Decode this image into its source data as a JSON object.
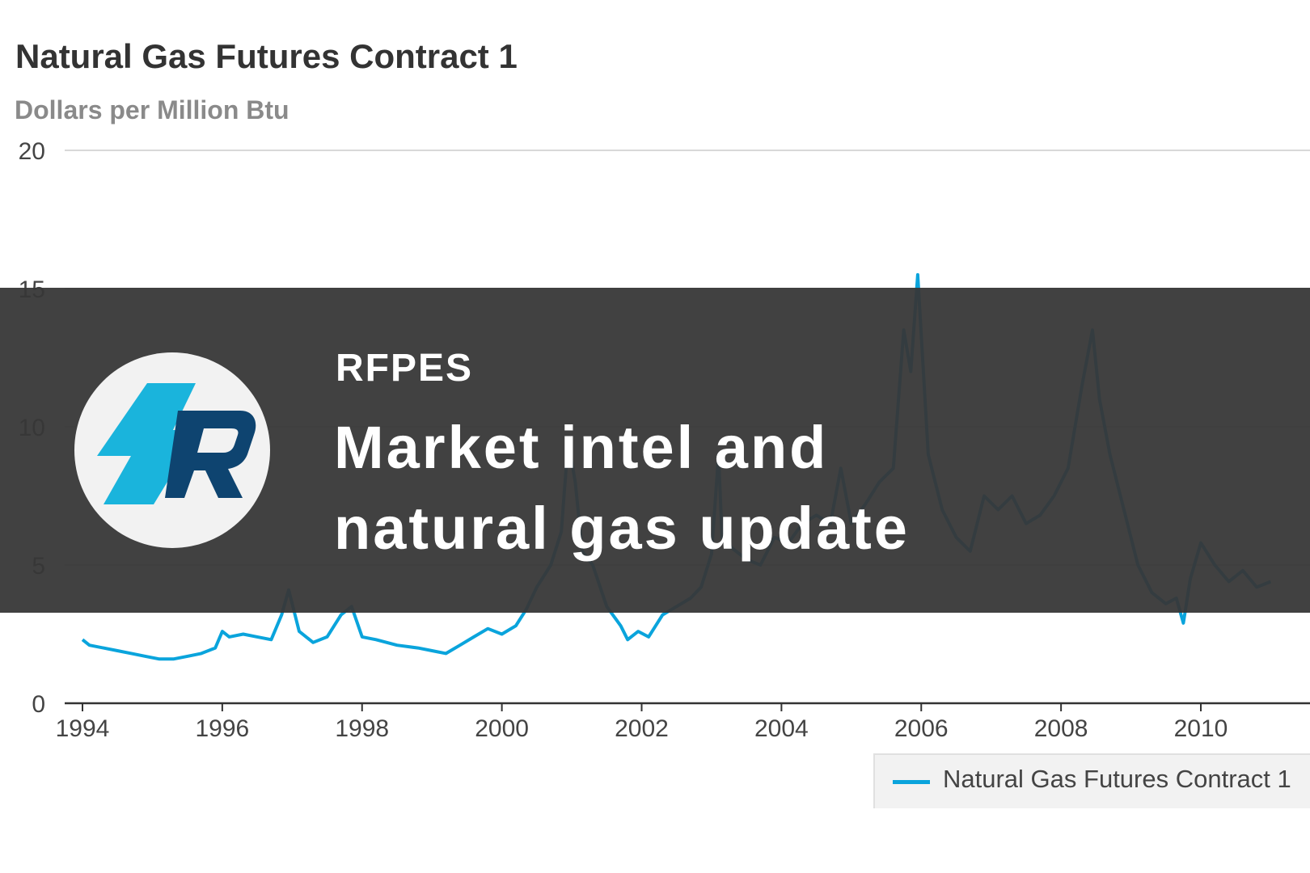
{
  "chart_data": {
    "type": "line",
    "title": "Natural Gas Futures Contract 1",
    "ylabel": "Dollars per Million Btu",
    "ylim": [
      0,
      20
    ],
    "xlim": [
      1994,
      2011.05
    ],
    "y_ticks": [
      0,
      5,
      10,
      15,
      20
    ],
    "x_ticks": [
      1994,
      1996,
      1998,
      2000,
      2002,
      2004,
      2006,
      2008,
      2010
    ],
    "grid": true,
    "legend_position": "bottom-right",
    "series": [
      {
        "name": "Natural Gas Futures Contract 1",
        "color": "#0aa4dc",
        "x": [
          1994.0,
          1994.1,
          1994.3,
          1994.5,
          1994.7,
          1994.9,
          1995.1,
          1995.3,
          1995.5,
          1995.7,
          1995.9,
          1996.0,
          1996.1,
          1996.3,
          1996.5,
          1996.7,
          1996.85,
          1996.95,
          1997.1,
          1997.3,
          1997.5,
          1997.7,
          1997.85,
          1998.0,
          1998.2,
          1998.5,
          1998.8,
          1999.0,
          1999.2,
          1999.4,
          1999.6,
          1999.8,
          2000.0,
          2000.2,
          2000.35,
          2000.5,
          2000.7,
          2000.85,
          2000.95,
          2001.05,
          2001.15,
          2001.3,
          2001.5,
          2001.7,
          2001.8,
          2001.95,
          2002.1,
          2002.3,
          2002.5,
          2002.7,
          2002.85,
          2003.0,
          2003.1,
          2003.15,
          2003.3,
          2003.5,
          2003.7,
          2003.9,
          2004.1,
          2004.3,
          2004.5,
          2004.7,
          2004.85,
          2005.0,
          2005.2,
          2005.4,
          2005.6,
          2005.75,
          2005.85,
          2005.95,
          2006.1,
          2006.3,
          2006.5,
          2006.7,
          2006.8,
          2006.9,
          2007.1,
          2007.3,
          2007.5,
          2007.7,
          2007.9,
          2008.1,
          2008.3,
          2008.45,
          2008.55,
          2008.7,
          2008.9,
          2009.1,
          2009.3,
          2009.5,
          2009.65,
          2009.75,
          2009.85,
          2010.0,
          2010.2,
          2010.4,
          2010.6,
          2010.8,
          2011.0
        ],
        "y": [
          2.3,
          2.1,
          2.0,
          1.9,
          1.8,
          1.7,
          1.6,
          1.6,
          1.7,
          1.8,
          2.0,
          2.6,
          2.4,
          2.5,
          2.4,
          2.3,
          3.2,
          4.1,
          2.6,
          2.2,
          2.4,
          3.2,
          3.5,
          2.4,
          2.3,
          2.1,
          2.0,
          1.9,
          1.8,
          2.1,
          2.4,
          2.7,
          2.5,
          2.8,
          3.4,
          4.2,
          5.0,
          6.2,
          9.5,
          8.0,
          5.5,
          5.0,
          3.5,
          2.8,
          2.3,
          2.6,
          2.4,
          3.2,
          3.5,
          3.8,
          4.2,
          5.4,
          9.0,
          6.0,
          5.6,
          5.2,
          5.0,
          6.0,
          5.8,
          6.5,
          6.8,
          6.5,
          8.5,
          6.5,
          7.2,
          8.0,
          8.5,
          13.5,
          12.0,
          15.5,
          9.0,
          7.0,
          6.0,
          5.5,
          6.5,
          7.5,
          7.0,
          7.5,
          6.5,
          6.8,
          7.5,
          8.5,
          11.5,
          13.5,
          11.0,
          9.0,
          7.0,
          5.0,
          4.0,
          3.6,
          3.8,
          2.9,
          4.5,
          5.8,
          5.0,
          4.4,
          4.8,
          4.2,
          4.4
        ]
      }
    ]
  },
  "banner": {
    "brand": "RFPES",
    "headline_line1": "Market intel and",
    "headline_line2": "natural gas update",
    "logo_colors": {
      "bolt": "#1ab4dc",
      "letter": "#0e4470",
      "circle": "#f2f2f2"
    }
  }
}
